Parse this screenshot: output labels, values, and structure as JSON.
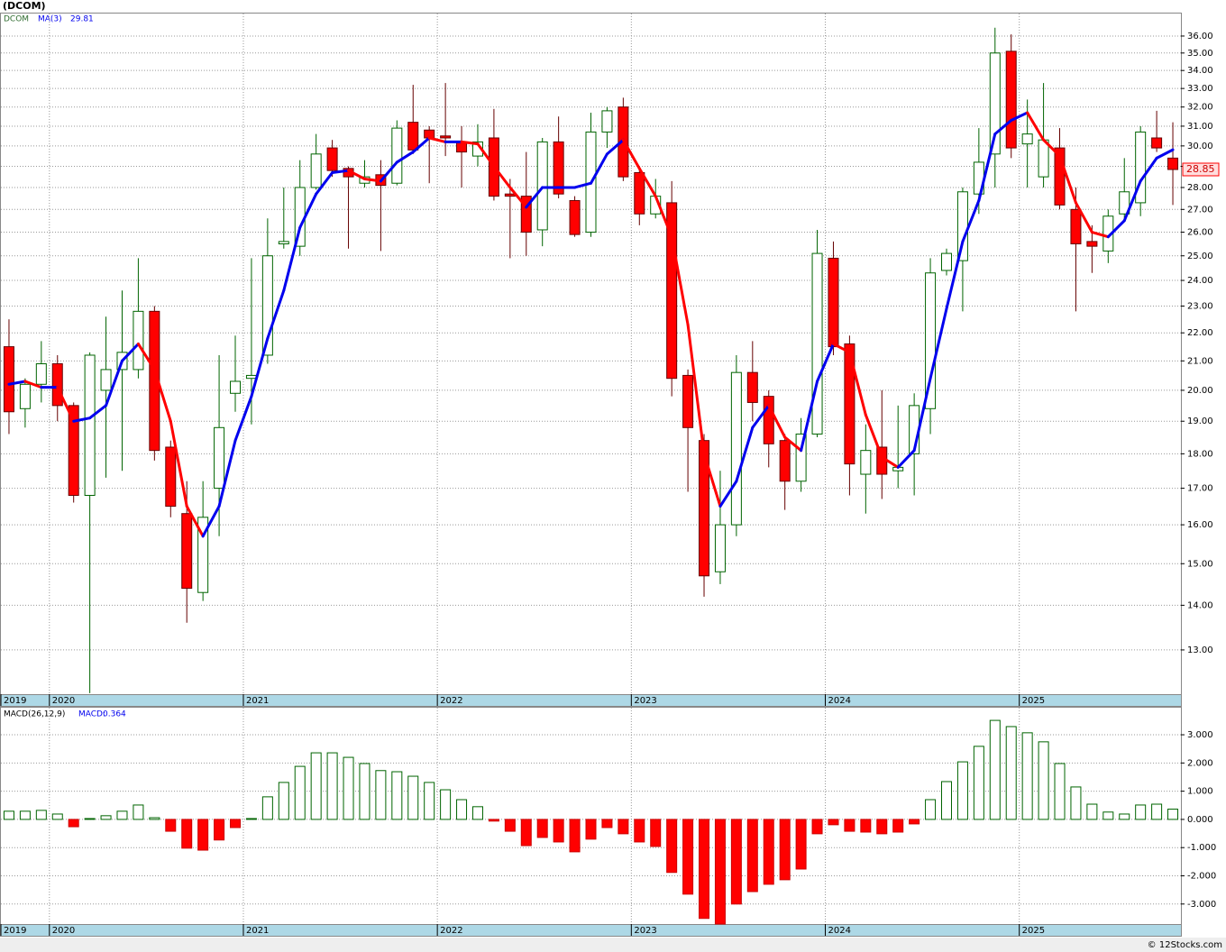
{
  "chart_data": [
    {
      "type": "candlestick",
      "title": "(DCOM)",
      "name": "DCOM",
      "log_scale": true,
      "grid": true,
      "up_color": "#006400",
      "down_color": "#ff0000",
      "categories": [
        "2019",
        null,
        null,
        "2020",
        null,
        null,
        null,
        null,
        null,
        null,
        null,
        null,
        null,
        null,
        null,
        "2021",
        null,
        null,
        null,
        null,
        null,
        null,
        null,
        null,
        null,
        null,
        null,
        "2022",
        null,
        null,
        null,
        null,
        null,
        null,
        null,
        null,
        null,
        null,
        null,
        "2023",
        null,
        null,
        null,
        null,
        null,
        null,
        null,
        null,
        null,
        null,
        null,
        "2024",
        null,
        null,
        null,
        null,
        null,
        null,
        null,
        null,
        null,
        null,
        null,
        "2025",
        null,
        null,
        null,
        null,
        null,
        null,
        null,
        null,
        null
      ],
      "open": [
        21.5,
        19.4,
        20.2,
        20.9,
        19.5,
        16.8,
        20.0,
        20.7,
        20.7,
        22.8,
        18.2,
        16.3,
        14.3,
        17.0,
        19.9,
        20.4,
        21.2,
        25.5,
        25.4,
        28.0,
        29.9,
        28.9,
        28.2,
        28.6,
        28.2,
        31.2,
        30.8,
        30.5,
        30.2,
        29.5,
        30.4,
        27.7,
        27.6,
        26.1,
        30.2,
        27.4,
        26.0,
        30.7,
        32.0,
        28.7,
        26.8,
        27.3,
        20.5,
        18.4,
        14.8,
        16.0,
        20.6,
        19.8,
        18.4,
        17.2,
        18.6,
        24.9,
        21.6,
        17.4,
        18.2,
        17.5,
        18.0,
        19.4,
        24.4,
        24.8,
        27.7,
        29.6,
        35.1,
        30.1,
        28.5,
        29.9,
        27.0,
        25.6,
        25.2,
        26.8,
        27.3,
        30.4,
        29.4
      ],
      "high": [
        22.5,
        20.4,
        21.7,
        21.2,
        19.6,
        21.3,
        22.6,
        23.6,
        24.9,
        23.0,
        18.4,
        17.2,
        17.2,
        21.2,
        21.9,
        24.9,
        26.6,
        28.0,
        29.3,
        30.6,
        30.3,
        29.0,
        29.3,
        29.3,
        31.3,
        33.2,
        31.0,
        33.3,
        31.0,
        31.1,
        31.9,
        28.4,
        29.7,
        30.4,
        31.5,
        27.6,
        31.7,
        32.0,
        32.5,
        29.0,
        28.4,
        28.3,
        20.7,
        18.6,
        17.5,
        21.2,
        21.7,
        20.0,
        18.6,
        19.1,
        26.1,
        25.6,
        21.9,
        18.9,
        20.0,
        19.5,
        19.9,
        24.9,
        25.3,
        28.0,
        30.9,
        36.5,
        36.1,
        32.4,
        33.3,
        30.9,
        28.0,
        26.3,
        27.0,
        29.4,
        31.0,
        31.8,
        31.2
      ],
      "low": [
        18.6,
        18.8,
        19.6,
        19.0,
        16.6,
        12.1,
        17.3,
        17.5,
        20.4,
        17.8,
        16.2,
        13.6,
        14.1,
        15.7,
        19.3,
        18.9,
        20.9,
        25.3,
        25.0,
        27.9,
        28.5,
        25.3,
        28.0,
        25.2,
        28.1,
        29.6,
        28.2,
        29.5,
        28.0,
        29.0,
        27.4,
        24.9,
        25.0,
        25.4,
        27.5,
        25.8,
        25.8,
        29.9,
        28.3,
        26.3,
        26.6,
        19.8,
        16.9,
        14.2,
        14.5,
        15.7,
        19.0,
        17.6,
        16.4,
        16.9,
        18.5,
        21.2,
        16.8,
        16.3,
        16.7,
        17.0,
        16.8,
        18.6,
        24.2,
        22.8,
        26.8,
        28.0,
        29.4,
        28.0,
        28.0,
        27.0,
        22.8,
        24.3,
        24.7,
        26.5,
        26.7,
        29.7,
        27.2
      ],
      "close": [
        19.3,
        20.2,
        20.9,
        19.5,
        16.8,
        21.2,
        20.7,
        21.3,
        22.8,
        18.1,
        16.5,
        14.4,
        16.2,
        18.8,
        20.3,
        20.5,
        25.0,
        25.6,
        28.0,
        29.6,
        28.8,
        28.5,
        28.5,
        28.1,
        30.9,
        29.8,
        30.4,
        30.4,
        29.7,
        30.2,
        27.6,
        27.6,
        26.0,
        30.2,
        27.7,
        25.9,
        30.7,
        31.8,
        28.5,
        26.8,
        27.6,
        20.4,
        18.8,
        14.7,
        16.0,
        20.6,
        19.6,
        18.3,
        17.2,
        18.6,
        25.1,
        21.5,
        17.7,
        18.1,
        17.4,
        17.6,
        19.5,
        24.3,
        25.1,
        27.8,
        29.2,
        35.0,
        29.9,
        30.6,
        30.3,
        27.2,
        25.5,
        25.4,
        26.7,
        27.8,
        30.7,
        29.9,
        28.85
      ],
      "ma": {
        "name": "MA(3)",
        "rising_color": "#0000ee",
        "falling_color": "#ff0000",
        "values": [
          20.2,
          20.3,
          20.1,
          20.1,
          19.0,
          19.1,
          19.5,
          21.0,
          21.6,
          20.7,
          19.0,
          16.5,
          15.7,
          16.5,
          18.4,
          19.8,
          21.8,
          23.6,
          26.2,
          27.7,
          28.7,
          28.8,
          28.4,
          28.3,
          29.2,
          29.7,
          30.4,
          30.2,
          30.2,
          30.1,
          29.0,
          28.0,
          27.1,
          28.0,
          28.0,
          28.0,
          28.2,
          29.6,
          30.3,
          28.9,
          27.6,
          25.8,
          22.3,
          18.0,
          16.5,
          17.2,
          18.8,
          19.5,
          18.5,
          18.1,
          20.3,
          21.6,
          21.3,
          19.2,
          17.9,
          17.6,
          18.1,
          20.4,
          22.9,
          25.6,
          27.4,
          30.6,
          31.3,
          31.7,
          30.3,
          29.5,
          27.3,
          26.0,
          25.8,
          26.5,
          28.3,
          29.4,
          29.81
        ]
      },
      "ylim": [
        12.08,
        37.37
      ],
      "yticks": [
        {
          "value": 13,
          "label": "13.00"
        },
        {
          "value": 14,
          "label": "14.00"
        },
        {
          "value": 15,
          "label": "15.00"
        },
        {
          "value": 16,
          "label": "16.00"
        },
        {
          "value": 17,
          "label": "17.00"
        },
        {
          "value": 18,
          "label": "18.00"
        },
        {
          "value": 19,
          "label": "19.00"
        },
        {
          "value": 20,
          "label": "20.00"
        },
        {
          "value": 21,
          "label": "21.00"
        },
        {
          "value": 22,
          "label": "22.00"
        },
        {
          "value": 23,
          "label": "23.00"
        },
        {
          "value": 24,
          "label": "24.00"
        },
        {
          "value": 25,
          "label": "25.00"
        },
        {
          "value": 26,
          "label": "26.00"
        },
        {
          "value": 27,
          "label": "27.00"
        },
        {
          "value": 28,
          "label": "28.00"
        },
        {
          "value": 29,
          "label": "29.00"
        },
        {
          "value": 30,
          "label": "30.00"
        },
        {
          "value": 31,
          "label": "31.00"
        },
        {
          "value": 32,
          "label": "32.00"
        },
        {
          "value": 33,
          "label": "33.00"
        },
        {
          "value": 34,
          "label": "34.00"
        },
        {
          "value": 35,
          "label": "35.00"
        },
        {
          "value": 36,
          "label": "36.00"
        }
      ],
      "credit": "© 12Stocks.com"
    },
    {
      "type": "bar",
      "name": "MACD(26,12,9)",
      "value_name": "MACD:",
      "grid": true,
      "positive_color": "#006400",
      "negative_color": "#ff0000",
      "categories": [
        "2019",
        null,
        null,
        "2020",
        null,
        null,
        null,
        null,
        null,
        null,
        null,
        null,
        null,
        null,
        null,
        "2021",
        null,
        null,
        null,
        null,
        null,
        null,
        null,
        null,
        null,
        null,
        null,
        "2022",
        null,
        null,
        null,
        null,
        null,
        null,
        null,
        null,
        null,
        null,
        null,
        "2023",
        null,
        null,
        null,
        null,
        null,
        null,
        null,
        null,
        null,
        null,
        null,
        "2024",
        null,
        null,
        null,
        null,
        null,
        null,
        null,
        null,
        null,
        null,
        null,
        "2025",
        null,
        null,
        null,
        null,
        null,
        null,
        null,
        null,
        null
      ],
      "values": [
        0.29,
        0.29,
        0.32,
        0.19,
        -0.26,
        0.03,
        0.13,
        0.29,
        0.51,
        0.06,
        -0.42,
        -1.02,
        -1.09,
        -0.73,
        -0.29,
        0.03,
        0.8,
        1.31,
        1.88,
        2.36,
        2.36,
        2.2,
        1.98,
        1.73,
        1.69,
        1.53,
        1.31,
        1.05,
        0.7,
        0.45,
        -0.06,
        -0.42,
        -0.93,
        -0.64,
        -0.8,
        -1.15,
        -0.7,
        -0.29,
        -0.51,
        -0.8,
        -0.96,
        -1.88,
        -2.65,
        -3.51,
        -3.71,
        -3.0,
        -2.56,
        -2.3,
        -2.14,
        -1.76,
        -0.51,
        -0.19,
        -0.42,
        -0.45,
        -0.51,
        -0.45,
        -0.16,
        0.7,
        1.34,
        2.04,
        2.59,
        3.51,
        3.29,
        3.07,
        2.75,
        1.98,
        1.15,
        0.54,
        0.26,
        0.19,
        0.51,
        0.54,
        0.364
      ],
      "ylim": [
        -3.71,
        3.96
      ],
      "yticks": [
        {
          "value": -3,
          "label": "-3.000"
        },
        {
          "value": -2,
          "label": "-2.000"
        },
        {
          "value": -1,
          "label": "-1.000"
        },
        {
          "value": 0,
          "label": "0.000"
        },
        {
          "value": 1,
          "label": "1.000"
        },
        {
          "value": 2,
          "label": "2.000"
        },
        {
          "value": 3,
          "label": "3.000"
        }
      ]
    }
  ]
}
